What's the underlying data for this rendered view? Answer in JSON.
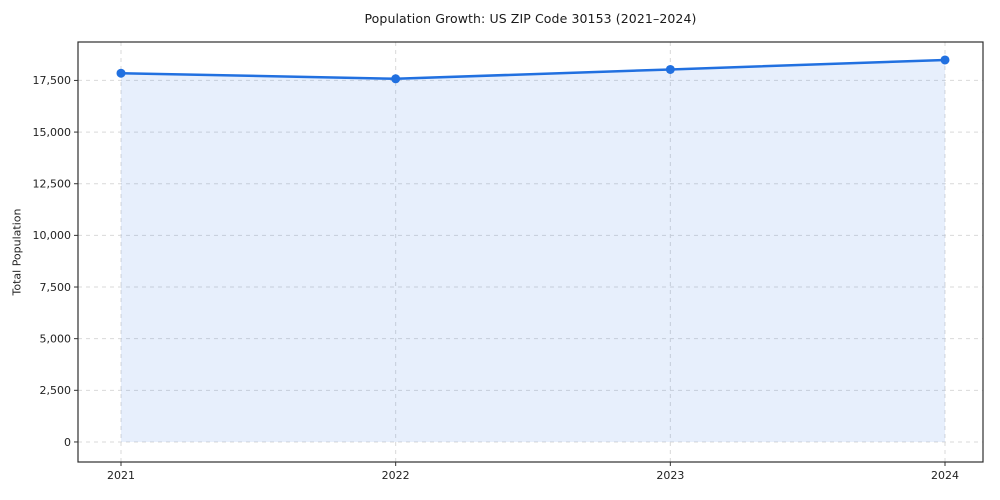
{
  "chart_data": {
    "type": "area",
    "title": "Population Growth: US ZIP Code 30153 (2021–2024)",
    "xlabel": "",
    "ylabel": "Total Population",
    "categories": [
      "2021",
      "2022",
      "2023",
      "2024"
    ],
    "series": [
      {
        "name": "Total Population",
        "values": [
          17850,
          17580,
          18030,
          18490
        ]
      }
    ],
    "yticks": [
      0,
      2500,
      5000,
      7500,
      10000,
      12500,
      15000,
      17500
    ],
    "ytick_labels": [
      "0",
      "2,500",
      "5,000",
      "7,500",
      "10,000",
      "12,500",
      "15,000",
      "17,500"
    ],
    "ylim": [
      -970,
      19360
    ],
    "grid": "dashed-both-axes",
    "legend": "none",
    "marker": "circle",
    "colors": {
      "line": "#2170e0",
      "marker": "#2170e0",
      "fill": "rgba(33,112,224,0.11)",
      "grid": "#d9d9d9",
      "frame": "#2e2e2e",
      "tick": "#333333",
      "tick_text": "#222222",
      "background": "#ffffff"
    }
  }
}
